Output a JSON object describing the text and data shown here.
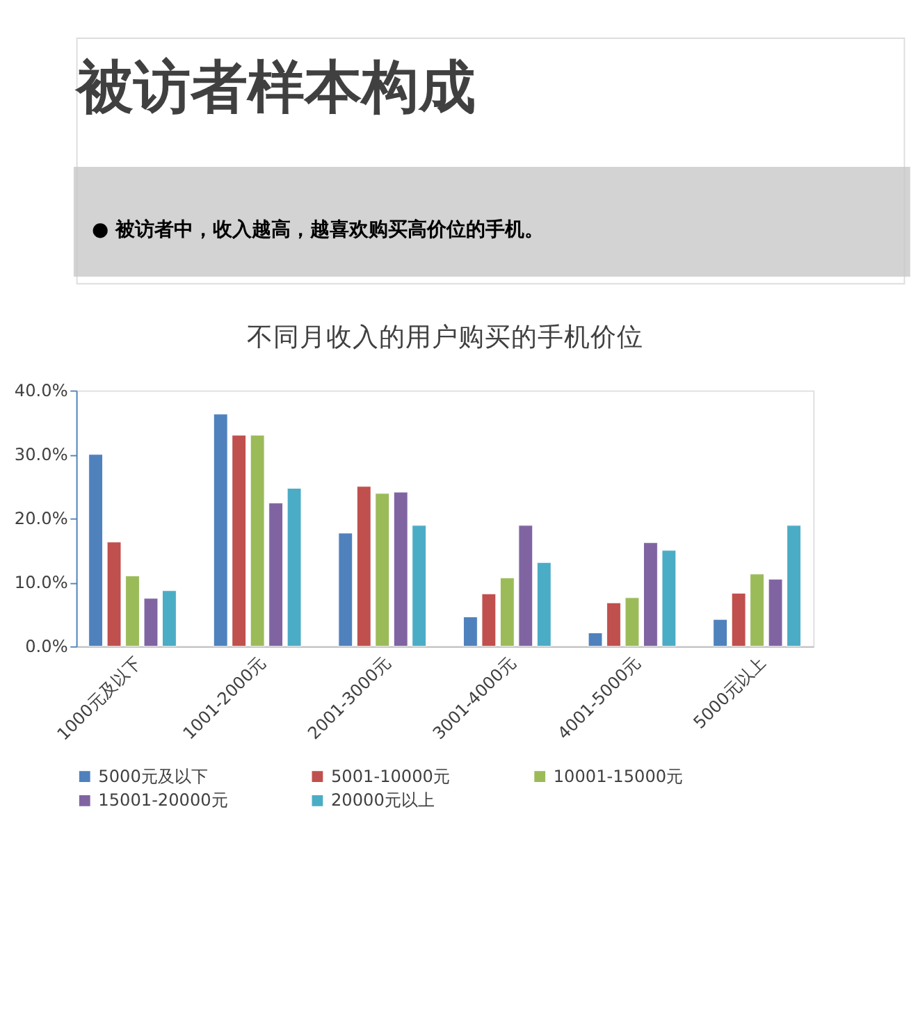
{
  "chart_data": {
    "type": "bar",
    "title": "不同月收入的用户购买的手机价位",
    "annotations": [
      "被访者样本构成",
      "●   被访者中，收入越高，越喜欢购买高价位的手机。"
    ],
    "categories": [
      "1000元及以下",
      "1001-2000元",
      "2001-3000元",
      "3001-4000元",
      "4001-5000元",
      "5000元以上"
    ],
    "series": [
      {
        "name": "5000元及以下",
        "color": "#4f81bd",
        "values": [
          30.0,
          36.3,
          17.7,
          4.6,
          2.1,
          4.2
        ]
      },
      {
        "name": "5001-10000元",
        "color": "#c0504d",
        "values": [
          16.3,
          33.0,
          25.0,
          8.2,
          6.8,
          8.3
        ]
      },
      {
        "name": "10001-15000元",
        "color": "#9bbb59",
        "values": [
          11.0,
          33.0,
          23.9,
          10.7,
          7.6,
          11.3
        ]
      },
      {
        "name": "15001-20000元",
        "color": "#8064a2",
        "values": [
          7.5,
          22.4,
          24.1,
          18.9,
          16.2,
          10.5
        ]
      },
      {
        "name": "20000元以上",
        "color": "#4bacc6",
        "values": [
          8.7,
          24.7,
          18.9,
          13.1,
          15.0,
          18.9
        ]
      }
    ],
    "ylim": [
      0,
      40
    ],
    "yticks": [
      {
        "value": 0,
        "label": "0.0%"
      },
      {
        "value": 10,
        "label": "10.0%"
      },
      {
        "value": 20,
        "label": "20.0%"
      },
      {
        "value": 30,
        "label": "30.0%"
      },
      {
        "value": 40,
        "label": "40.0%"
      }
    ],
    "grid": false,
    "legend": "bottom"
  }
}
